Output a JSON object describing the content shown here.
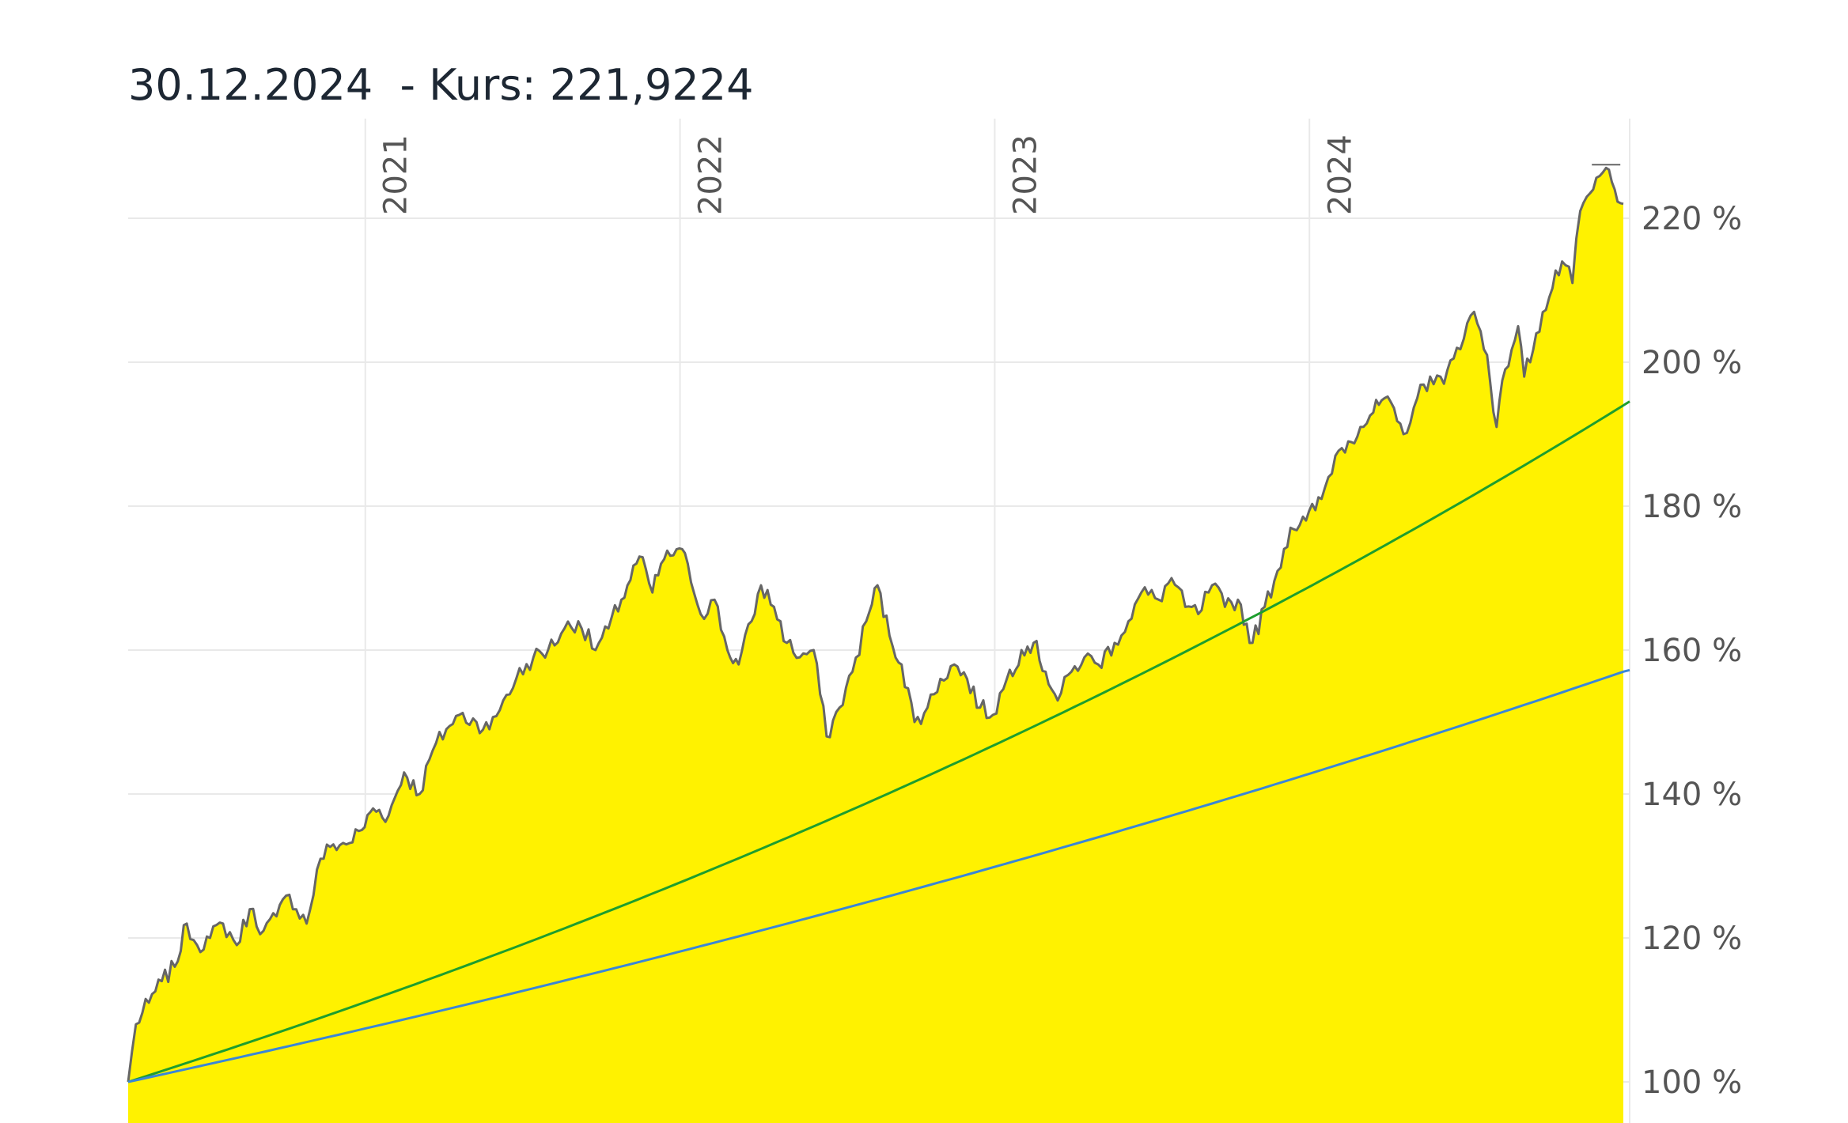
{
  "header": {
    "date": "30.12.2024",
    "separator": "  - Kurs: ",
    "price": "221,9224"
  },
  "chart_data": {
    "type": "area",
    "title": "30.12.2024  - Kurs: 221,9224",
    "x_range": [
      "2020-04-01",
      "2024-12-30"
    ],
    "y_unit": "%",
    "ylim": [
      97,
      226
    ],
    "yticks": [
      100,
      120,
      140,
      160,
      180,
      200,
      220
    ],
    "ytick_labels": [
      "100 %",
      "120 %",
      "140 %",
      "160 %",
      "180 %",
      "200 %",
      "220 %"
    ],
    "xticks": [
      {
        "date": "2021-01-01",
        "label": "2021"
      },
      {
        "date": "2022-01-01",
        "label": "2022"
      },
      {
        "date": "2023-01-01",
        "label": "2023"
      },
      {
        "date": "2024-01-01",
        "label": "2024"
      }
    ],
    "grid": true,
    "y_axis_position": "right",
    "series": [
      {
        "kind": "area",
        "color": "#666666",
        "fill": "#fff200",
        "points": [
          [
            "2020-04-01",
            100
          ],
          [
            "2020-04-10",
            108
          ],
          [
            "2020-04-25",
            111
          ],
          [
            "2020-05-10",
            114
          ],
          [
            "2020-05-25",
            116
          ],
          [
            "2020-06-08",
            122
          ],
          [
            "2020-06-20",
            119
          ],
          [
            "2020-07-05",
            120
          ],
          [
            "2020-07-20",
            122
          ],
          [
            "2020-08-05",
            119
          ],
          [
            "2020-08-20",
            124
          ],
          [
            "2020-09-05",
            121
          ],
          [
            "2020-09-20",
            123
          ],
          [
            "2020-10-05",
            126
          ],
          [
            "2020-10-25",
            122
          ],
          [
            "2020-11-10",
            131
          ],
          [
            "2020-11-25",
            133
          ],
          [
            "2020-12-10",
            133
          ],
          [
            "2020-12-28",
            135
          ],
          [
            "2021-01-10",
            138
          ],
          [
            "2021-01-28",
            137
          ],
          [
            "2021-02-15",
            143
          ],
          [
            "2021-03-05",
            140
          ],
          [
            "2021-03-20",
            146
          ],
          [
            "2021-04-05",
            149
          ],
          [
            "2021-04-20",
            151
          ],
          [
            "2021-05-10",
            150
          ],
          [
            "2021-05-25",
            149
          ],
          [
            "2021-06-10",
            153
          ],
          [
            "2021-06-25",
            156
          ],
          [
            "2021-07-15",
            159
          ],
          [
            "2021-08-01",
            160
          ],
          [
            "2021-08-20",
            163
          ],
          [
            "2021-09-05",
            164
          ],
          [
            "2021-09-25",
            160
          ],
          [
            "2021-10-10",
            163
          ],
          [
            "2021-10-25",
            167
          ],
          [
            "2021-11-15",
            173
          ],
          [
            "2021-11-30",
            168
          ],
          [
            "2021-12-10",
            172
          ],
          [
            "2021-12-28",
            174
          ],
          [
            "2022-01-10",
            172
          ],
          [
            "2022-01-25",
            165
          ],
          [
            "2022-02-10",
            167
          ],
          [
            "2022-02-25",
            160
          ],
          [
            "2022-03-10",
            158
          ],
          [
            "2022-03-25",
            164
          ],
          [
            "2022-04-05",
            169
          ],
          [
            "2022-04-20",
            166
          ],
          [
            "2022-05-05",
            161
          ],
          [
            "2022-05-20",
            159
          ],
          [
            "2022-06-05",
            160
          ],
          [
            "2022-06-20",
            148
          ],
          [
            "2022-07-05",
            152
          ],
          [
            "2022-07-20",
            157
          ],
          [
            "2022-08-05",
            164
          ],
          [
            "2022-08-18",
            169
          ],
          [
            "2022-09-01",
            162
          ],
          [
            "2022-09-15",
            158
          ],
          [
            "2022-09-30",
            150
          ],
          [
            "2022-10-15",
            152
          ],
          [
            "2022-10-30",
            156
          ],
          [
            "2022-11-15",
            158
          ],
          [
            "2022-11-30",
            156
          ],
          [
            "2022-12-15",
            152
          ],
          [
            "2022-12-30",
            151
          ],
          [
            "2023-01-15",
            156
          ],
          [
            "2023-02-01",
            160
          ],
          [
            "2023-02-15",
            161
          ],
          [
            "2023-03-01",
            157
          ],
          [
            "2023-03-15",
            153
          ],
          [
            "2023-03-31",
            157
          ],
          [
            "2023-04-15",
            159
          ],
          [
            "2023-05-01",
            158
          ],
          [
            "2023-05-20",
            161
          ],
          [
            "2023-06-05",
            164
          ],
          [
            "2023-06-20",
            168
          ],
          [
            "2023-07-10",
            167
          ],
          [
            "2023-07-25",
            170
          ],
          [
            "2023-08-10",
            166
          ],
          [
            "2023-08-25",
            165
          ],
          [
            "2023-09-10",
            169
          ],
          [
            "2023-09-25",
            166
          ],
          [
            "2023-10-10",
            167
          ],
          [
            "2023-10-27",
            161
          ],
          [
            "2023-11-10",
            166
          ],
          [
            "2023-11-25",
            171
          ],
          [
            "2023-12-10",
            177
          ],
          [
            "2023-12-28",
            178
          ],
          [
            "2024-01-15",
            181
          ],
          [
            "2024-01-31",
            187
          ],
          [
            "2024-02-15",
            189
          ],
          [
            "2024-02-29",
            191
          ],
          [
            "2024-03-15",
            193
          ],
          [
            "2024-03-28",
            195
          ],
          [
            "2024-04-19",
            190
          ],
          [
            "2024-05-05",
            195
          ],
          [
            "2024-05-20",
            198
          ],
          [
            "2024-06-05",
            197
          ],
          [
            "2024-06-20",
            202
          ],
          [
            "2024-07-10",
            207
          ],
          [
            "2024-07-25",
            201
          ],
          [
            "2024-08-05",
            191
          ],
          [
            "2024-08-15",
            199
          ],
          [
            "2024-08-30",
            205
          ],
          [
            "2024-09-06",
            198
          ],
          [
            "2024-09-20",
            204
          ],
          [
            "2024-10-05",
            209
          ],
          [
            "2024-10-20",
            214
          ],
          [
            "2024-11-01",
            211
          ],
          [
            "2024-11-10",
            221
          ],
          [
            "2024-11-25",
            224
          ],
          [
            "2024-12-10",
            227
          ],
          [
            "2024-12-20",
            224
          ],
          [
            "2024-12-30",
            222
          ]
        ]
      },
      {
        "kind": "line",
        "color": "#1e9e2e",
        "curve": "exponential",
        "start": [
          "2020-04-01",
          100
        ],
        "end": [
          "2024-12-30",
          194
        ]
      },
      {
        "kind": "line",
        "color": "#3a86d8",
        "curve": "exponential",
        "start": [
          "2020-04-01",
          100
        ],
        "end": [
          "2024-12-30",
          157
        ]
      }
    ]
  }
}
